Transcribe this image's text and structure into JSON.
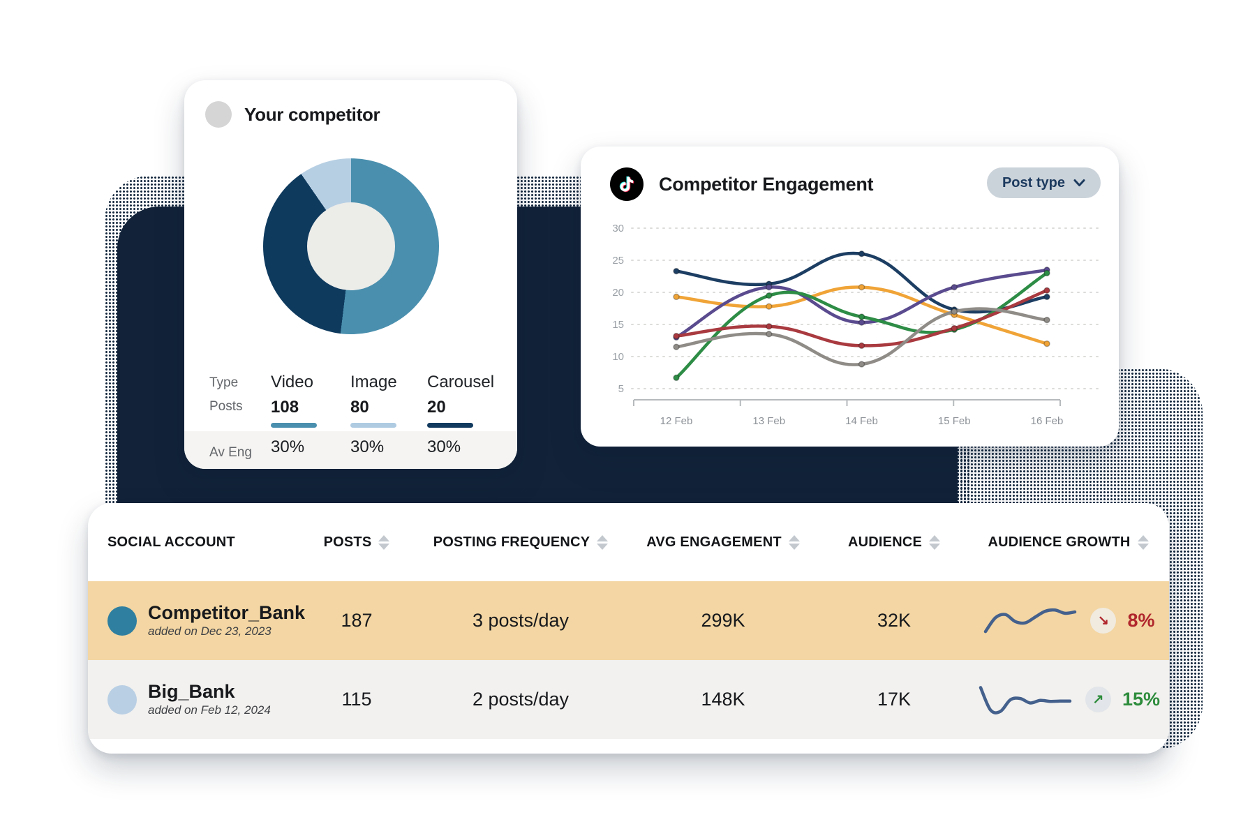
{
  "colors": {
    "backdrop_navy": "#122339",
    "halftone_dot": "#16293f",
    "growth_up": "#2d8c3c",
    "growth_down": "#b0262c",
    "sparkline": "#44608c",
    "pill_bg": "#cbd3da",
    "pill_text": "#1c3a5e"
  },
  "competitor_card": {
    "title": "Your competitor",
    "stats": {
      "row_labels": [
        "Type",
        "Posts",
        "Av Eng"
      ],
      "columns": [
        {
          "type": "Video",
          "posts": "108",
          "avg_eng": "30%",
          "bar_color": "#4a8fae"
        },
        {
          "type": "Image",
          "posts": "80",
          "avg_eng": "30%",
          "bar_color": "#aecbe2"
        },
        {
          "type": "Carousel",
          "posts": "20",
          "avg_eng": "30%",
          "bar_color": "#123a5f"
        }
      ]
    }
  },
  "engagement_card": {
    "icon": "tiktok-icon",
    "title": "Competitor Engagement",
    "dropdown_label": "Post type"
  },
  "chart_data": [
    {
      "type": "pie",
      "subtype": "donut",
      "title": "Your competitor",
      "categories": [
        "Video",
        "Image",
        "Carousel"
      ],
      "values": [
        108,
        80,
        20
      ],
      "segment_colors": [
        "#4a8fae",
        "#0e3a5e",
        "#b7cfe3"
      ],
      "start_angle_deg": 0,
      "clockwise": true,
      "hole_color": "#ececе9"
    },
    {
      "type": "line",
      "title": "Competitor Engagement",
      "x": [
        "12 Feb",
        "13 Feb",
        "14 Feb",
        "15 Feb",
        "16 Feb"
      ],
      "yticks": [
        30,
        25,
        20,
        15,
        10,
        5
      ],
      "ylim": [
        3,
        31
      ],
      "grid": "horizontal-dashed",
      "legend": "none",
      "series": [
        {
          "name": "navy",
          "color": "#1d3e63",
          "values": [
            23.3,
            21.3,
            26.0,
            17.3,
            19.3
          ]
        },
        {
          "name": "orange",
          "color": "#f0a437",
          "values": [
            19.3,
            17.8,
            20.8,
            16.5,
            12.0
          ]
        },
        {
          "name": "purple",
          "color": "#5a4b8f",
          "values": [
            13.0,
            20.8,
            15.3,
            20.8,
            23.5
          ]
        },
        {
          "name": "green",
          "color": "#2d8c45",
          "values": [
            6.7,
            19.5,
            16.2,
            14.2,
            23.0
          ]
        },
        {
          "name": "red",
          "color": "#a93a3f",
          "values": [
            13.2,
            14.7,
            11.7,
            14.4,
            20.3
          ]
        },
        {
          "name": "gray",
          "color": "#8f8b86",
          "values": [
            11.5,
            13.5,
            8.8,
            17.0,
            15.7
          ]
        }
      ]
    }
  ],
  "table": {
    "headers": [
      {
        "label": "SOCIAL ACCOUNT",
        "sortable": false
      },
      {
        "label": "POSTS",
        "sortable": true
      },
      {
        "label": "POSTING FREQUENCY",
        "sortable": true
      },
      {
        "label": "AVG ENGAGEMENT",
        "sortable": true
      },
      {
        "label": "AUDIENCE",
        "sortable": true
      },
      {
        "label": "AUDIENCE GROWTH",
        "sortable": true
      }
    ],
    "rows": [
      {
        "name": "Competitor_Bank",
        "added": "added on Dec 23, 2023",
        "posts": "187",
        "frequency": "3 posts/day",
        "avg_engagement": "299K",
        "audience": "32K",
        "growth_pct": "8%",
        "trend": "down",
        "trend_glyph": "↘",
        "avatar_color": "#2f7fa0",
        "row_bg": "#f3d6a3",
        "badge_bg": "#f0eadf",
        "spark": [
          1.5,
          5.8,
          6.8,
          4.6,
          4.2,
          6.0,
          7.8,
          8.2,
          7.2,
          7.6
        ]
      },
      {
        "name": "Big_Bank",
        "added": "added on Feb 12, 2024",
        "posts": "115",
        "frequency": "2 posts/day",
        "avg_engagement": "148K",
        "audience": "17K",
        "growth_pct": "15%",
        "trend": "up",
        "trend_glyph": "↗",
        "avatar_color": "#b9cfe4",
        "row_bg": "#f2f1ef",
        "badge_bg": "#e2e5e9",
        "spark": [
          8.6,
          1.6,
          1.2,
          4.8,
          5.2,
          3.8,
          4.6,
          4.3,
          4.4,
          4.4
        ]
      }
    ]
  }
}
